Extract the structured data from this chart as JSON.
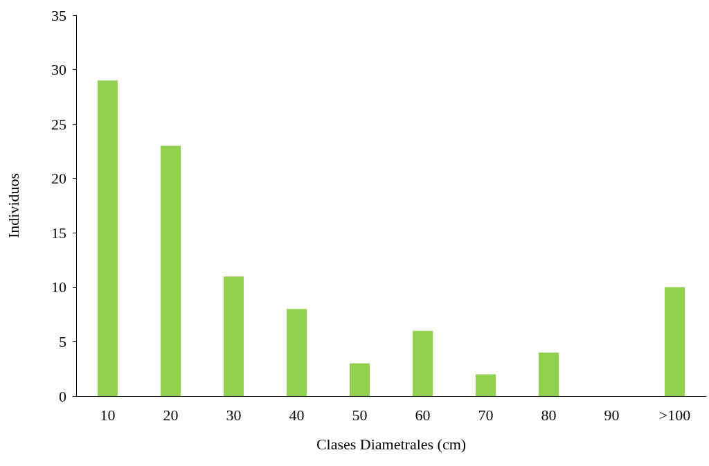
{
  "chart_data": {
    "type": "bar",
    "xlabel": "Clases Diametrales (cm)",
    "ylabel": "Individuos",
    "categories": [
      "10",
      "20",
      "30",
      "40",
      "50",
      "60",
      "70",
      "80",
      "90",
      ">100"
    ],
    "values": [
      29,
      23,
      11,
      8,
      3,
      6,
      2,
      4,
      0,
      10
    ],
    "color": "#92d050",
    "ylim": [
      0,
      35
    ],
    "yticks": [
      0,
      5,
      10,
      15,
      20,
      25,
      30,
      35
    ],
    "grid": false
  }
}
